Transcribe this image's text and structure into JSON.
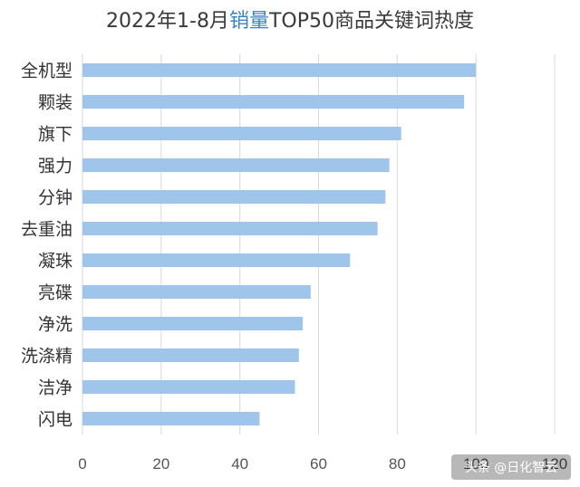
{
  "chart_data": {
    "type": "bar",
    "orientation": "horizontal",
    "title": "2022年1-8月销量TOP50商品关键词热度",
    "title_parts": {
      "before": "2022年1-8月",
      "highlight": "销量",
      "after": "TOP50商品关键词热度"
    },
    "categories": [
      "全机型",
      "颗装",
      "旗下",
      "强力",
      "分钟",
      "去重油",
      "凝珠",
      "亮碟",
      "净洗",
      "洗涤精",
      "洁净",
      "闪电"
    ],
    "values": [
      100,
      97,
      81,
      78,
      77,
      75,
      68,
      58,
      56,
      55,
      54,
      45
    ],
    "xlim": [
      0,
      120
    ],
    "xticks": [
      0,
      20,
      40,
      60,
      80,
      100,
      120
    ],
    "xlabel": "",
    "ylabel": "",
    "grid": true,
    "legend": "none",
    "bar_color": "#9fc5ea",
    "highlight_color": "#3b82c4"
  },
  "watermark": {
    "text": "头条 @日化智云"
  }
}
